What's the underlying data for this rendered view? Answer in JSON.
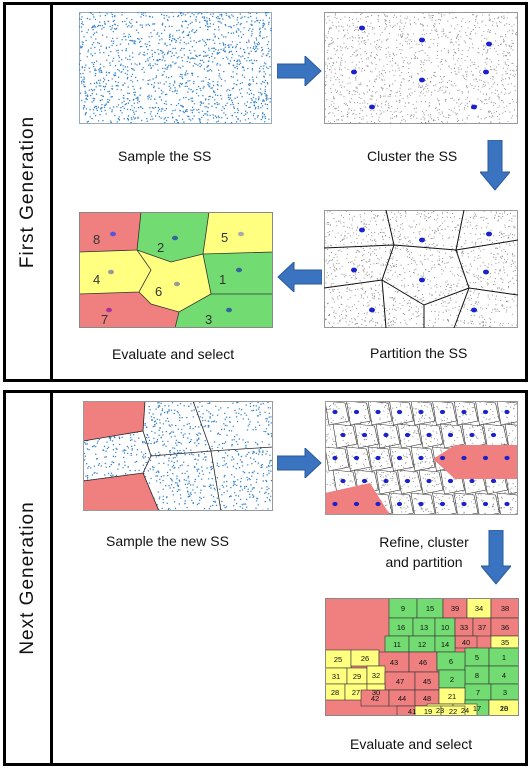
{
  "panels": [
    {
      "label": "First Generation",
      "captions": {
        "sample": "Sample the SS",
        "cluster": "Cluster the SS",
        "partition": "Partition the SS",
        "evaluate": "Evaluate and select"
      },
      "region_numbers": [
        "8",
        "2",
        "5",
        "4",
        "6",
        "1",
        "7",
        "3"
      ]
    },
    {
      "label": "Next Generation",
      "captions": {
        "sample": "Sample the new SS",
        "refine_line1": "Refine, cluster",
        "refine_line2": "and partition",
        "evaluate": "Evaluate and select"
      },
      "region_numbers": [
        "9",
        "15",
        "39",
        "34",
        "38",
        "16",
        "13",
        "10",
        "33",
        "37",
        "36",
        "40",
        "35",
        "11",
        "12",
        "14",
        "5",
        "1",
        "25",
        "26",
        "43",
        "46",
        "6",
        "8",
        "4",
        "31",
        "29",
        "32",
        "47",
        "45",
        "2",
        "7",
        "3",
        "28",
        "27",
        "30",
        "42",
        "44",
        "48",
        "21",
        "17",
        "18",
        "41",
        "23",
        "24",
        "20",
        "19",
        "22"
      ]
    }
  ],
  "colors": {
    "dots": "#2f7fc8",
    "gray_dots": "#8a8a8a",
    "centroid": "#1a22cc",
    "arrow": "#3a73c0",
    "red": "#f08080",
    "green": "#72dc72",
    "yellow": "#ffff80"
  }
}
